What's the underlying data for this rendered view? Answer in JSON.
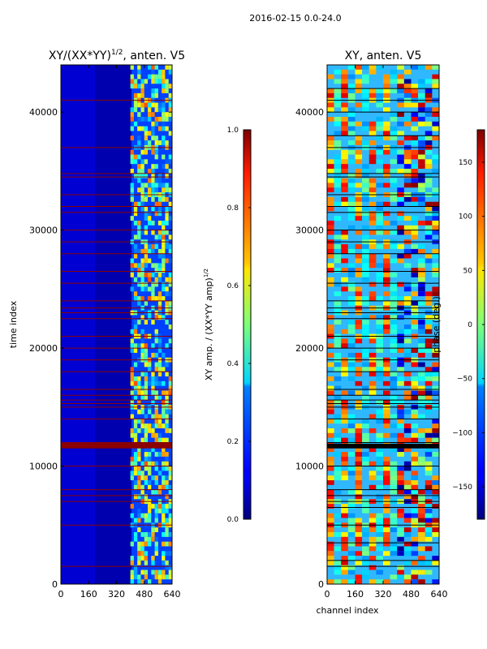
{
  "figure": {
    "suptitle": "2016-02-15 0.0-24.0"
  },
  "chart_data": [
    {
      "type": "heatmap",
      "title_prefix": "XY/(XX*YY)",
      "title_exponent": "1/2",
      "title_suffix": ", anten. V5",
      "xlabel": "",
      "ylabel": "time index",
      "xlim": [
        0,
        640
      ],
      "ylim": [
        0,
        44000
      ],
      "x_ticks": [
        0,
        160,
        320,
        480,
        640
      ],
      "y_ticks": [
        0,
        10000,
        20000,
        30000,
        40000
      ],
      "x_tick_labels": [
        "0",
        "160",
        "320",
        "480",
        "640"
      ],
      "y_tick_labels": [
        "0",
        "10000",
        "20000",
        "30000",
        "40000"
      ],
      "colormap": "jet",
      "colorbar": {
        "label_prefix": "XY amp. / (XX*YY amp)",
        "label_exponent": "1/2",
        "range": [
          0.0,
          1.0
        ],
        "ticks": [
          0.0,
          0.2,
          0.4,
          0.6,
          0.8,
          1.0
        ],
        "tick_labels": [
          "0.0",
          "0.2",
          "0.4",
          "0.6",
          "0.8",
          "1.0"
        ]
      },
      "flagged_rows": [
        1500,
        5000,
        7000,
        7500,
        8000,
        10000,
        11600,
        11700,
        11800,
        11900,
        12000,
        14000,
        15000,
        15300,
        15600,
        16000,
        16500,
        18000,
        19000,
        20000,
        21000,
        22500,
        23000,
        23400,
        24000,
        25500,
        26500,
        28000,
        29000,
        30000,
        31500,
        32000,
        33000,
        34500,
        34800,
        37000,
        41000
      ],
      "flag_color": "#8b0000"
    },
    {
      "type": "heatmap",
      "title": "XY, anten. V5",
      "xlabel": "channel index",
      "ylabel": "",
      "xlim": [
        0,
        640
      ],
      "ylim": [
        0,
        44000
      ],
      "x_ticks": [
        0,
        160,
        320,
        480,
        640
      ],
      "y_ticks": [
        0,
        10000,
        20000,
        30000,
        40000
      ],
      "x_tick_labels": [
        "0",
        "160",
        "320",
        "480",
        "640"
      ],
      "y_tick_labels": [
        "0",
        "10000",
        "20000",
        "30000",
        "40000"
      ],
      "colormap": "jet",
      "colorbar": {
        "label": "phase (deg.)",
        "range": [
          -180,
          180
        ],
        "ticks": [
          -150,
          -100,
          -50,
          0,
          50,
          100,
          150
        ],
        "tick_labels": [
          "−150",
          "−100",
          "−50",
          "0",
          "50",
          "100",
          "150"
        ]
      },
      "flagged_rows": [
        1500,
        2000,
        3500,
        5000,
        6500,
        7000,
        7500,
        8000,
        10000,
        11600,
        11800,
        12000,
        14000,
        15000,
        15300,
        15600,
        16000,
        16500,
        18000,
        19000,
        20000,
        21000,
        22500,
        23000,
        23400,
        24000,
        25500,
        26500,
        28000,
        29000,
        30000,
        31500,
        32000,
        33000,
        34500,
        34800,
        37000,
        38000,
        40000,
        41000,
        42000
      ],
      "flag_color": "#000000"
    }
  ]
}
